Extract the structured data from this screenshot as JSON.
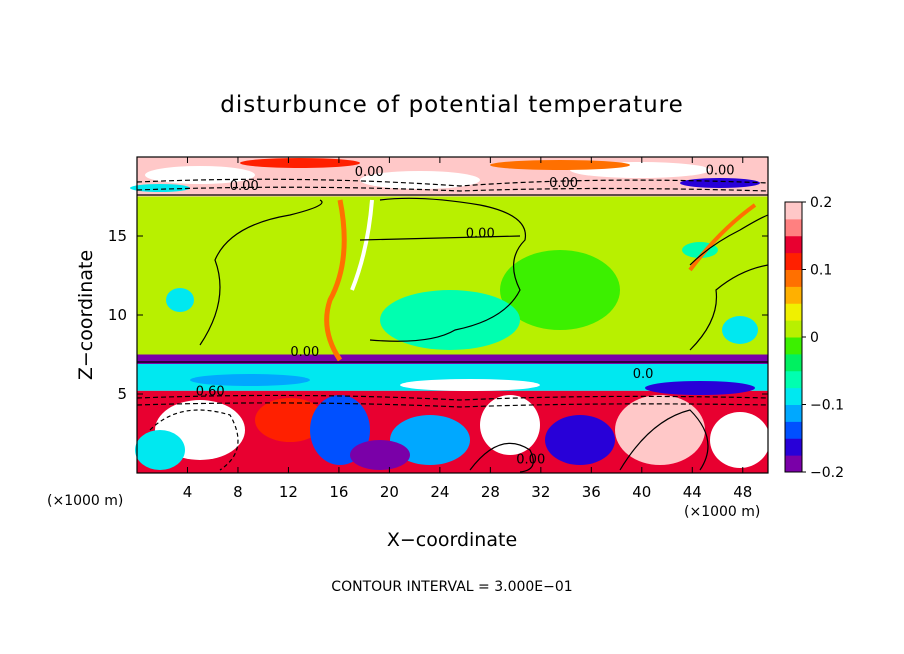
{
  "chart_data": {
    "type": "heatmap",
    "title": "disturbunce of potential temperature",
    "xlabel": "X−coordinate",
    "ylabel": "Z−coordinate",
    "x_unit_left": "(×1000 m)",
    "x_unit_right": "(×1000 m)",
    "xlim": [
      0,
      50
    ],
    "ylim": [
      0,
      20
    ],
    "x_ticks": [
      4,
      8,
      12,
      16,
      20,
      24,
      28,
      32,
      36,
      40,
      44,
      48
    ],
    "x_tick_labels": [
      "4",
      "8",
      "12",
      "16",
      "20",
      "24",
      "28",
      "32",
      "36",
      "40",
      "44",
      "48"
    ],
    "y_ticks": [
      5,
      10,
      15
    ],
    "y_tick_labels": [
      "5",
      "10",
      "15"
    ],
    "colorbar": {
      "min": -0.2,
      "max": 0.2,
      "ticks": [
        0.2,
        0.1,
        0,
        -0.1,
        -0.2
      ],
      "tick_labels": [
        "0.2",
        "0.1",
        "0",
        "−0.1",
        "−0.2"
      ],
      "colors": [
        "#7a00a8",
        "#2800d8",
        "#0050ff",
        "#00a8ff",
        "#00e8f0",
        "#00ffb0",
        "#00f060",
        "#3cf000",
        "#b8f000",
        "#f0f000",
        "#ffb000",
        "#ff7000",
        "#ff2000",
        "#e80030",
        "#ff8080",
        "#ffc8c8"
      ]
    },
    "bands": [
      {
        "z": [
          17.5,
          20
        ],
        "level": 0.2
      },
      {
        "z": [
          7.5,
          17.5
        ],
        "level": 0.0
      },
      {
        "z": [
          6.9,
          7.5
        ],
        "level": -0.2
      },
      {
        "z": [
          5.2,
          6.9
        ],
        "level": -0.08
      },
      {
        "z": [
          0,
          5.2
        ],
        "level": 0.15
      }
    ],
    "contour_labels": [
      {
        "x": 8.5,
        "z": 17.9,
        "text": "0.00"
      },
      {
        "x": 18.4,
        "z": 18.8,
        "text": "0.00"
      },
      {
        "x": 33.8,
        "z": 18.1,
        "text": "0.00"
      },
      {
        "x": 46.2,
        "z": 18.9,
        "text": "0.00"
      },
      {
        "x": 27.2,
        "z": 14.9,
        "text": "0.00"
      },
      {
        "x": 13.3,
        "z": 7.4,
        "text": "0.00"
      },
      {
        "x": 5.8,
        "z": 4.9,
        "text": "0.60"
      },
      {
        "x": 31.2,
        "z": 0.6,
        "text": "0.00"
      },
      {
        "x": 40.1,
        "z": 6.0,
        "text": "0.0"
      }
    ],
    "footer": "CONTOUR INTERVAL = 3.000E−01"
  }
}
